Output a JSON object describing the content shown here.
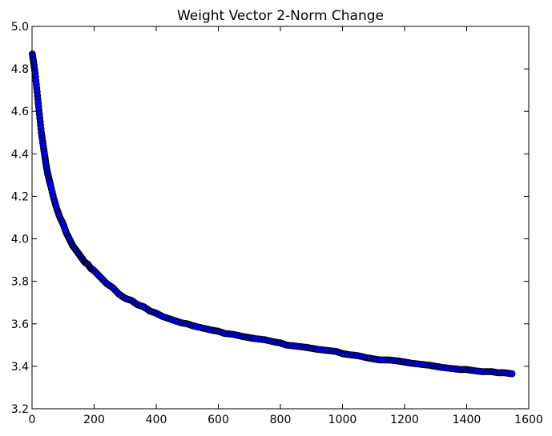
{
  "chart_data": {
    "type": "scatter",
    "title": "Weight Vector 2-Norm Change",
    "xlabel": "",
    "ylabel": "",
    "xlim": [
      0,
      1600
    ],
    "ylim": [
      3.2,
      5.0
    ],
    "x_ticks": [
      0,
      200,
      400,
      600,
      800,
      1000,
      1200,
      1400,
      1600
    ],
    "y_ticks": [
      3.2,
      3.4,
      3.6,
      3.8,
      4.0,
      4.2,
      4.4,
      4.6,
      4.8,
      5.0
    ],
    "x_tick_labels": [
      "0",
      "200",
      "400",
      "600",
      "800",
      "1000",
      "1200",
      "1400",
      "1600"
    ],
    "y_tick_labels": [
      "3.2",
      "3.4",
      "3.6",
      "3.8",
      "4.0",
      "4.2",
      "4.4",
      "4.6",
      "4.8",
      "5.0"
    ],
    "grid": false,
    "legend": "none",
    "marker_color": "#0000ff",
    "marker_edge_color": "#000000",
    "series": [
      {
        "x": [
          1,
          5,
          10,
          15,
          20,
          25,
          30,
          35,
          40,
          45,
          50,
          55,
          60,
          70,
          80,
          90,
          100,
          110,
          120,
          130,
          140,
          150,
          160,
          170,
          180,
          190,
          200,
          220,
          240,
          260,
          280,
          300,
          320,
          340,
          360,
          380,
          400,
          420,
          450,
          480,
          500,
          520,
          550,
          580,
          600,
          620,
          650,
          680,
          700,
          720,
          750,
          780,
          800,
          820,
          850,
          880,
          900,
          920,
          950,
          980,
          1000,
          1020,
          1050,
          1080,
          1100,
          1120,
          1150,
          1180,
          1200,
          1220,
          1250,
          1280,
          1300,
          1320,
          1350,
          1380,
          1400,
          1420,
          1450,
          1480,
          1500,
          1520,
          1546
        ],
        "y": [
          4.87,
          4.83,
          4.78,
          4.71,
          4.64,
          4.57,
          4.5,
          4.45,
          4.4,
          4.35,
          4.31,
          4.28,
          4.25,
          4.19,
          4.14,
          4.1,
          4.07,
          4.03,
          4.0,
          3.97,
          3.95,
          3.93,
          3.91,
          3.89,
          3.88,
          3.86,
          3.85,
          3.82,
          3.79,
          3.77,
          3.74,
          3.72,
          3.71,
          3.69,
          3.68,
          3.66,
          3.65,
          3.635,
          3.62,
          3.605,
          3.6,
          3.59,
          3.58,
          3.57,
          3.565,
          3.555,
          3.55,
          3.54,
          3.535,
          3.53,
          3.525,
          3.515,
          3.51,
          3.5,
          3.495,
          3.49,
          3.485,
          3.48,
          3.475,
          3.47,
          3.46,
          3.455,
          3.45,
          3.44,
          3.435,
          3.43,
          3.43,
          3.425,
          3.42,
          3.415,
          3.41,
          3.405,
          3.4,
          3.395,
          3.39,
          3.385,
          3.385,
          3.38,
          3.375,
          3.375,
          3.37,
          3.37,
          3.365
        ]
      }
    ]
  }
}
